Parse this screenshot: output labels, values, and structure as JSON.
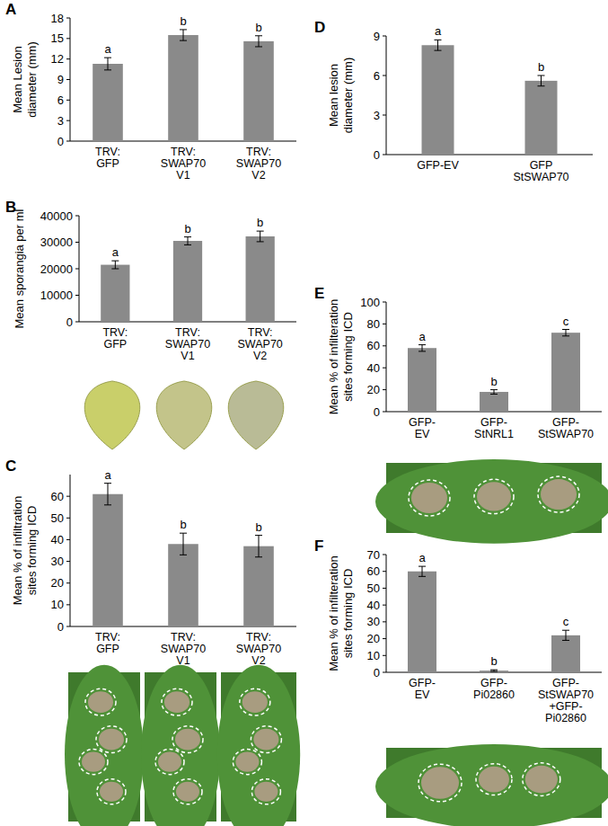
{
  "chart_data": [
    {
      "type": "bar",
      "title": "A",
      "y_label": "Mean Lesion\ndiameter (mm)",
      "categories": [
        "TRV:\nGFP",
        "TRV:\nSWAP70\nV1",
        "TRV:\nSWAP70\nV2"
      ],
      "values": [
        11.3,
        15.5,
        14.6
      ],
      "errors": [
        0.9,
        0.8,
        0.8
      ],
      "annotations": [
        "a",
        "b",
        "b"
      ],
      "color": "#8a8a8a",
      "ylim": [
        0,
        18
      ],
      "yticks": [
        0,
        3,
        6,
        9,
        12,
        15,
        18
      ],
      "grid": false
    },
    {
      "type": "bar",
      "title": "B",
      "y_label": "Mean sporangia per ml",
      "categories": [
        "TRV:\nGFP",
        "TRV:\nSWAP70\nV1",
        "TRV:\nSWAP70\nV2"
      ],
      "values": [
        21500,
        30500,
        32200
      ],
      "errors": [
        1500,
        1500,
        2000
      ],
      "annotations": [
        "a",
        "b",
        "b"
      ],
      "color": "#8a8a8a",
      "ylim": [
        0,
        40000
      ],
      "yticks": [
        0,
        10000,
        20000,
        30000,
        40000
      ],
      "grid": false
    },
    {
      "type": "bar",
      "title": "C",
      "y_label": "Mean % of infiltration\nsites forming ICD",
      "categories": [
        "TRV:\nGFP",
        "TRV:\nSWAP70\nV1",
        "TRV:\nSWAP70\nV2"
      ],
      "values": [
        61,
        38,
        37
      ],
      "errors": [
        5,
        5,
        5
      ],
      "annotations": [
        "a",
        "b",
        "b"
      ],
      "color": "#8a8a8a",
      "ylim": [
        0,
        70
      ],
      "yticks": [
        0,
        10,
        20,
        30,
        40,
        50,
        60
      ],
      "grid": false
    },
    {
      "type": "bar",
      "title": "D",
      "y_label": "Mean lesion\ndiameter (mm)",
      "categories": [
        "GFP-EV",
        "GFP\nStSWAP70"
      ],
      "values": [
        8.3,
        5.6
      ],
      "errors": [
        0.4,
        0.4
      ],
      "annotations": [
        "a",
        "b"
      ],
      "color": "#8a8a8a",
      "ylim": [
        0,
        9
      ],
      "yticks": [
        0,
        3,
        6,
        9
      ],
      "grid": false
    },
    {
      "type": "bar",
      "title": "E",
      "y_label": "Mean % of infilteration\nsites forming ICD",
      "categories": [
        "GFP-\nEV",
        "GFP-\nStNRL1",
        "GFP-\nStSWAP70"
      ],
      "values": [
        58,
        18,
        72
      ],
      "errors": [
        3,
        2,
        3
      ],
      "annotations": [
        "a",
        "b",
        "c"
      ],
      "color": "#8a8a8a",
      "ylim": [
        0,
        100
      ],
      "yticks": [
        0,
        20,
        40,
        60,
        80,
        100
      ],
      "grid": false
    },
    {
      "type": "bar",
      "title": "F",
      "y_label": "Mean % of infilteration\nsites forming ICD",
      "categories": [
        "GFP-\nEV",
        "GFP-\nPi02860",
        "GFP-\nStSWAP70\n+GFP-\nPi02860"
      ],
      "values": [
        60,
        1,
        22
      ],
      "errors": [
        3,
        0.5,
        3
      ],
      "annotations": [
        "a",
        "b",
        "c"
      ],
      "color": "#8a8a8a",
      "ylim": [
        0,
        70
      ],
      "yticks": [
        0,
        10,
        20,
        30,
        40,
        50,
        60,
        70
      ],
      "grid": false
    }
  ]
}
